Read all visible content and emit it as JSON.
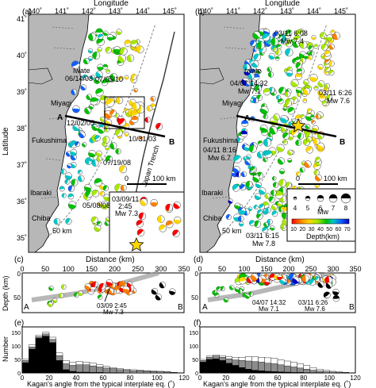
{
  "header": {
    "panel_a_label": "(a)",
    "panel_b_label": "(b)",
    "panel_c_label": "(c)",
    "panel_d_label": "(d)",
    "panel_e_label": "(e)",
    "panel_f_label": "(f)"
  },
  "map": {
    "longitude_title": "Longitude",
    "latitude_title": "Latitude",
    "lon_ticks": [
      "140˚",
      "141˚",
      "142˚",
      "143˚",
      "144˚",
      "145˚"
    ],
    "lat_ticks": [
      "41˚",
      "40˚",
      "39˚",
      "38˚",
      "37˚",
      "36˚",
      "35˚"
    ],
    "colors": {
      "land": "#b7b7b7",
      "sea": "#ffffff",
      "trench": "#333333"
    }
  },
  "panel_a": {
    "labels": {
      "iwate": "Iwate",
      "iwate_date": "06/14/08",
      "miyagi": "Miyagi",
      "fukushima": "Fukushima",
      "ibaraki": "Ibaraki",
      "chiba": "Chiba",
      "a_end": "A",
      "b_end": "B",
      "d1": "07/05/10",
      "d2": "12/02/05",
      "d3": "10/31/03",
      "d4": "07/19/08",
      "d5": "05/08/08",
      "trench": "Japan Trench",
      "contour": "50 km"
    },
    "scale": {
      "zero": "0",
      "value": "100 km"
    },
    "inset": {
      "label_date": "03/09/11",
      "label_time": "2:45",
      "label_mw": "Mw 7.3"
    }
  },
  "panel_b": {
    "labels": {
      "iwate": "Iwate",
      "miyagi": "Miyagi",
      "fukushima": "Fukushima",
      "ibaraki": "Ibaraki",
      "chiba": "Chiba",
      "a_end": "A",
      "b_end": "B",
      "e1_date": "03/11 6:08",
      "e1_mw": "Mw 7.4",
      "e2_date": "04/07 14:32",
      "e2_mw": "Mw 7.1",
      "e3_date": "03/11 6:26",
      "e3_mw": "Mw 7.6",
      "e4_date": "04/11 8:16",
      "e4_mw": "Mw 6.7",
      "e5_date": "03/11 6:15",
      "e5_mw": "Mw 7.8",
      "contour": "50 km"
    },
    "scale": {
      "zero": "0",
      "value": "100 km"
    },
    "legend": {
      "mw_values": [
        "4",
        "5",
        "6",
        "7",
        "8"
      ],
      "mw_title": "Mw",
      "depth_ticks": [
        "10",
        "20",
        "30",
        "40",
        "50",
        "60",
        "70"
      ],
      "depth_title": "Depth(km)"
    }
  },
  "depth_colors": [
    "#ff0000",
    "#ff7f00",
    "#ffd700",
    "#a7e800",
    "#00c000",
    "#00c8c8",
    "#1060ff",
    "#0000c0"
  ],
  "sections": {
    "distance_title": "Distance (km)",
    "depth_title": "Depth (km)",
    "x_ticks": [
      "0",
      "50",
      "100",
      "150",
      "200",
      "250",
      "300",
      "350"
    ],
    "y_ticks": [
      "0",
      "50"
    ],
    "c_labels": {
      "a": "A",
      "b": "B",
      "ev_date": "03/09 2:45",
      "ev_mw": "Mw 7.3"
    },
    "d_labels": {
      "a": "A",
      "b": "B",
      "ev1_date": "04/07 14:32",
      "ev1_mw": "Mw 7.1",
      "ev2_date": "03/11 6:26",
      "ev2_mw": "Mw 7.6"
    }
  },
  "histograms": {
    "y_title": "Number",
    "x_title": "Kagan's angle from the typical interplate eq. (˚)",
    "x_ticks": [
      "0",
      "20",
      "40",
      "60",
      "80",
      "100",
      "120"
    ],
    "y_ticks": [
      "0",
      "50",
      "100",
      "150"
    ],
    "colors": {
      "black": "#000000",
      "gray": "#8c8c8c",
      "white": "#ffffff"
    }
  },
  "chart_data": [
    {
      "type": "bar",
      "panel": "(e)",
      "x_unit": "degrees",
      "bin_width": 5,
      "x": [
        2.5,
        7.5,
        12.5,
        17.5,
        22.5,
        27.5,
        32.5,
        37.5,
        42.5,
        47.5,
        52.5,
        57.5,
        62.5,
        67.5,
        72.5,
        77.5,
        82.5,
        87.5,
        92.5,
        97.5,
        102.5,
        107.5,
        112.5,
        117.5
      ],
      "series": [
        {
          "values": [
            38,
            88,
            128,
            136,
            112,
            46,
            12,
            6,
            3,
            3,
            2,
            2,
            1,
            1,
            1,
            0,
            0,
            0,
            0,
            0,
            0,
            0,
            0,
            0
          ]
        },
        {
          "values": [
            46,
            96,
            134,
            144,
            124,
            64,
            34,
            28,
            30,
            30,
            26,
            22,
            18,
            16,
            12,
            10,
            8,
            8,
            6,
            5,
            4,
            3,
            1,
            0
          ]
        },
        {
          "values": [
            52,
            104,
            140,
            150,
            132,
            74,
            46,
            40,
            42,
            40,
            36,
            30,
            24,
            20,
            16,
            14,
            12,
            10,
            8,
            7,
            6,
            5,
            2,
            0
          ]
        }
      ],
      "ylim": [
        0,
        170
      ],
      "xlim": [
        0,
        120
      ]
    },
    {
      "type": "bar",
      "panel": "(f)",
      "x_unit": "degrees",
      "bin_width": 5,
      "x": [
        2.5,
        7.5,
        12.5,
        17.5,
        22.5,
        27.5,
        32.5,
        37.5,
        42.5,
        47.5,
        52.5,
        57.5,
        62.5,
        67.5,
        72.5,
        77.5,
        82.5,
        87.5,
        92.5,
        97.5,
        102.5,
        107.5,
        112.5,
        117.5
      ],
      "series": [
        {
          "values": [
            40,
            50,
            52,
            46,
            36,
            28,
            20,
            14,
            10,
            8,
            6,
            5,
            4,
            3,
            2,
            2,
            1,
            1,
            1,
            0,
            0,
            0,
            0,
            0
          ]
        },
        {
          "values": [
            46,
            58,
            62,
            58,
            52,
            48,
            46,
            44,
            42,
            40,
            36,
            34,
            30,
            26,
            22,
            18,
            14,
            10,
            7,
            5,
            3,
            2,
            1,
            0
          ]
        },
        {
          "values": [
            50,
            62,
            66,
            64,
            60,
            58,
            58,
            60,
            60,
            58,
            56,
            54,
            48,
            44,
            40,
            34,
            28,
            20,
            14,
            10,
            6,
            4,
            2,
            0
          ]
        }
      ],
      "ylim": [
        0,
        170
      ],
      "xlim": [
        0,
        120
      ]
    }
  ]
}
